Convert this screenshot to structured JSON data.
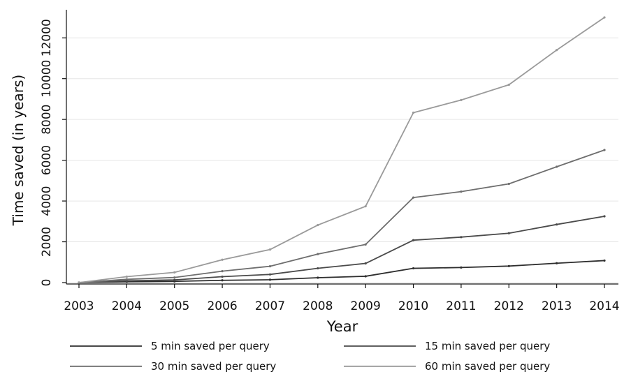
{
  "chart_data": {
    "type": "line",
    "title": "",
    "xlabel": "Year",
    "ylabel": "Time saved (in years)",
    "x": [
      2003,
      2004,
      2005,
      2006,
      2007,
      2008,
      2009,
      2010,
      2011,
      2012,
      2013,
      2014
    ],
    "xlim": [
      2003,
      2014
    ],
    "ylim": [
      0,
      13000
    ],
    "yticks": [
      0,
      2000,
      4000,
      6000,
      8000,
      10000,
      12000
    ],
    "grid": "horizontal",
    "legend_position": "bottom",
    "series": [
      {
        "name": "5 min saved per query",
        "color": "#2e2e2e",
        "values": [
          0,
          40,
          60,
          110,
          140,
          240,
          310,
          700,
          740,
          810,
          950,
          1080
        ]
      },
      {
        "name": "15 min saved per query",
        "color": "#4a4a4a",
        "values": [
          0,
          90,
          130,
          290,
          400,
          700,
          940,
          2080,
          2230,
          2420,
          2850,
          3250
        ]
      },
      {
        "name": "30 min saved per query",
        "color": "#6e6e6e",
        "values": [
          0,
          160,
          250,
          560,
          800,
          1400,
          1870,
          4170,
          4460,
          4840,
          5680,
          6500
        ]
      },
      {
        "name": "60 min saved per query",
        "color": "#9a9a9a",
        "values": [
          0,
          290,
          500,
          1120,
          1620,
          2820,
          3740,
          8330,
          8950,
          9700,
          11400,
          13000
        ]
      }
    ]
  }
}
